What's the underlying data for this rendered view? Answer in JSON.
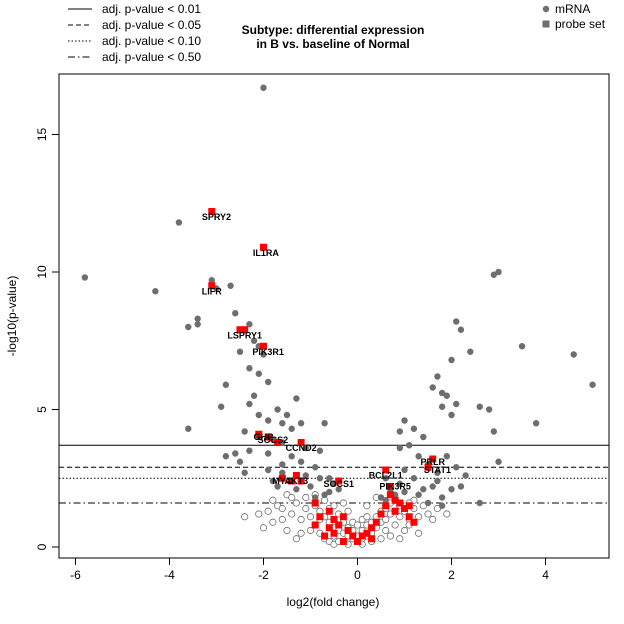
{
  "chart_data": {
    "type": "scatter",
    "title_line1": "Subtype: differential expression",
    "title_line2": "in B vs. baseline of Normal",
    "xlabel": "log2(fold change)",
    "ylabel": "-log10(p-value)",
    "xlim": [
      -6.35,
      5.35
    ],
    "ylim": [
      -0.4,
      17.2
    ],
    "xticks": [
      -6,
      -4,
      -2,
      0,
      2,
      4
    ],
    "yticks": [
      0,
      5,
      10,
      15
    ],
    "thresholds": [
      {
        "label": "adj. p-value < 0.01",
        "y": 3.7,
        "dash": ""
      },
      {
        "label": "adj. p-value < 0.05",
        "y": 2.9,
        "dash": "5,3"
      },
      {
        "label": "adj. p-value < 0.10",
        "y": 2.5,
        "dash": "1.5,2"
      },
      {
        "label": "adj. p-value < 0.50",
        "y": 1.6,
        "dash": "7,3,1.5,3"
      }
    ],
    "legend_right": [
      {
        "label": "mRNA",
        "shape": "circle"
      },
      {
        "label": "probe set",
        "shape": "square"
      }
    ],
    "colors": {
      "significant": "#6e6e6e",
      "probe_set": "#ff0000",
      "outline": "#6e6e6e"
    },
    "significant_mrna": [
      [
        -2.0,
        16.7
      ],
      [
        -5.8,
        9.8
      ],
      [
        -4.3,
        9.3
      ],
      [
        -3.8,
        11.8
      ],
      [
        -3.1,
        12.2
      ],
      [
        -2.0,
        10.9
      ],
      [
        -3.1,
        9.7
      ],
      [
        -3.0,
        9.4
      ],
      [
        -2.7,
        9.5
      ],
      [
        -3.4,
        8.1
      ],
      [
        -3.6,
        8.0
      ],
      [
        -3.4,
        8.3
      ],
      [
        -2.6,
        8.5
      ],
      [
        -2.3,
        8.1
      ],
      [
        -2.4,
        7.9
      ],
      [
        -2.2,
        7.5
      ],
      [
        -2.5,
        7.1
      ],
      [
        -2.1,
        7.3
      ],
      [
        -2.0,
        7.0
      ],
      [
        -2.3,
        6.5
      ],
      [
        -2.8,
        5.9
      ],
      [
        -2.1,
        6.3
      ],
      [
        -1.9,
        6.0
      ],
      [
        -2.9,
        5.1
      ],
      [
        -3.6,
        4.3
      ],
      [
        -2.3,
        5.2
      ],
      [
        -2.2,
        5.5
      ],
      [
        -2.1,
        4.8
      ],
      [
        -1.7,
        5.0
      ],
      [
        -1.9,
        4.6
      ],
      [
        -1.5,
        4.8
      ],
      [
        -1.3,
        5.4
      ],
      [
        -1.4,
        4.3
      ],
      [
        -1.6,
        4.5
      ],
      [
        -1.2,
        4.5
      ],
      [
        -0.7,
        4.5
      ],
      [
        -2.4,
        4.2
      ],
      [
        -2.1,
        4.0
      ],
      [
        -1.8,
        3.9
      ],
      [
        -2.3,
        3.5
      ],
      [
        -1.9,
        3.4
      ],
      [
        -1.6,
        3.8
      ],
      [
        -1.1,
        3.6
      ],
      [
        -0.8,
        3.5
      ],
      [
        -2.5,
        3.1
      ],
      [
        -1.9,
        2.8
      ],
      [
        -1.6,
        3.0
      ],
      [
        -1.4,
        3.3
      ],
      [
        -1.2,
        3.1
      ],
      [
        -0.9,
        2.9
      ],
      [
        -0.8,
        2.5
      ],
      [
        -1.0,
        2.2
      ],
      [
        -1.3,
        2.1
      ],
      [
        -1.6,
        2.7
      ],
      [
        -2.4,
        2.7
      ],
      [
        -1.8,
        2.4
      ],
      [
        -0.6,
        2.5
      ],
      [
        -0.5,
        2.3
      ],
      [
        -0.4,
        2.1
      ],
      [
        -0.7,
        1.9
      ],
      [
        -0.9,
        1.8
      ],
      [
        -1.1,
        2.6
      ],
      [
        -0.6,
        2.0
      ],
      [
        -2.6,
        3.4
      ],
      [
        -1.7,
        2.2
      ],
      [
        -2.8,
        3.3
      ],
      [
        4.6,
        7.0
      ],
      [
        5.0,
        5.9
      ],
      [
        3.8,
        4.5
      ],
      [
        3.5,
        7.3
      ],
      [
        3.0,
        10.0
      ],
      [
        2.9,
        9.9
      ],
      [
        2.1,
        8.2
      ],
      [
        2.2,
        7.9
      ],
      [
        2.4,
        7.1
      ],
      [
        2.0,
        6.8
      ],
      [
        1.7,
        6.2
      ],
      [
        1.6,
        5.8
      ],
      [
        1.9,
        5.5
      ],
      [
        1.8,
        5.1
      ],
      [
        2.0,
        4.8
      ],
      [
        2.6,
        5.1
      ],
      [
        2.8,
        5.0
      ],
      [
        2.9,
        4.2
      ],
      [
        1.2,
        4.3
      ],
      [
        1.0,
        4.6
      ],
      [
        0.9,
        4.2
      ],
      [
        1.4,
        4.0
      ],
      [
        1.1,
        3.7
      ],
      [
        1.3,
        3.3
      ],
      [
        0.9,
        3.6
      ],
      [
        1.5,
        3.0
      ],
      [
        1.9,
        3.3
      ],
      [
        2.1,
        2.9
      ],
      [
        2.3,
        2.6
      ],
      [
        1.7,
        2.7
      ],
      [
        1.6,
        2.2
      ],
      [
        2.0,
        2.1
      ],
      [
        2.2,
        2.2
      ],
      [
        1.2,
        2.5
      ],
      [
        0.9,
        2.3
      ],
      [
        0.7,
        2.1
      ],
      [
        0.6,
        2.5
      ],
      [
        0.8,
        1.9
      ],
      [
        1.0,
        2.0
      ],
      [
        1.3,
        1.9
      ],
      [
        1.5,
        1.6
      ],
      [
        1.8,
        1.8
      ],
      [
        1.8,
        1.5
      ],
      [
        2.6,
        1.6
      ],
      [
        3.0,
        3.1
      ],
      [
        1.0,
        2.8
      ],
      [
        1.7,
        2.4
      ],
      [
        1.4,
        2.1
      ],
      [
        0.5,
        1.8
      ],
      [
        2.1,
        5.2
      ],
      [
        0.6,
        1.7
      ],
      [
        1.8,
        5.6
      ]
    ],
    "other_mrna": [
      [
        -1.5,
        1.9
      ],
      [
        -1.3,
        1.6
      ],
      [
        -1.1,
        1.4
      ],
      [
        -1.4,
        1.2
      ],
      [
        -1.2,
        1.0
      ],
      [
        -0.9,
        1.5
      ],
      [
        -1.0,
        1.1
      ],
      [
        -0.8,
        1.3
      ],
      [
        -0.9,
        0.8
      ],
      [
        -0.7,
        1.1
      ],
      [
        -0.6,
        0.9
      ],
      [
        -0.5,
        0.7
      ],
      [
        -0.6,
        1.4
      ],
      [
        -0.4,
        1.2
      ],
      [
        -0.3,
        0.9
      ],
      [
        -0.4,
        0.6
      ],
      [
        -0.5,
        0.4
      ],
      [
        -0.3,
        0.5
      ],
      [
        -0.2,
        0.7
      ],
      [
        -0.2,
        0.4
      ],
      [
        -0.1,
        0.3
      ],
      [
        -0.1,
        0.6
      ],
      [
        0.0,
        0.2
      ],
      [
        0.0,
        0.4
      ],
      [
        0.1,
        0.3
      ],
      [
        0.1,
        0.6
      ],
      [
        0.2,
        0.4
      ],
      [
        0.2,
        0.8
      ],
      [
        0.3,
        0.5
      ],
      [
        0.3,
        0.9
      ],
      [
        0.4,
        0.7
      ],
      [
        0.4,
        1.1
      ],
      [
        0.5,
        0.9
      ],
      [
        0.5,
        1.3
      ],
      [
        0.6,
        1.0
      ],
      [
        0.6,
        1.4
      ],
      [
        0.7,
        1.2
      ],
      [
        0.7,
        1.6
      ],
      [
        0.8,
        1.3
      ],
      [
        0.9,
        1.1
      ],
      [
        0.9,
        1.5
      ],
      [
        1.0,
        1.3
      ],
      [
        1.1,
        1.0
      ],
      [
        1.2,
        1.4
      ],
      [
        1.3,
        1.1
      ],
      [
        1.1,
        0.8
      ],
      [
        1.2,
        1.7
      ],
      [
        1.4,
        1.5
      ],
      [
        -1.7,
        1.5
      ],
      [
        -1.9,
        1.3
      ],
      [
        -2.1,
        1.2
      ],
      [
        -1.6,
        1.0
      ],
      [
        -1.8,
        1.7
      ],
      [
        -2.4,
        1.1
      ],
      [
        -0.8,
        0.5
      ],
      [
        -0.7,
        0.3
      ],
      [
        -0.6,
        0.2
      ],
      [
        -0.5,
        0.1
      ],
      [
        0.3,
        0.2
      ],
      [
        0.5,
        0.3
      ],
      [
        0.6,
        0.6
      ],
      [
        0.8,
        0.8
      ],
      [
        1.0,
        0.6
      ],
      [
        -1.0,
        0.6
      ],
      [
        -1.2,
        0.5
      ],
      [
        -0.3,
        1.6
      ],
      [
        -0.2,
        1.3
      ],
      [
        0.2,
        1.5
      ],
      [
        0.4,
        1.8
      ],
      [
        -0.9,
        1.9
      ],
      [
        1.5,
        1.2
      ],
      [
        1.6,
        1.0
      ],
      [
        -1.3,
        0.3
      ],
      [
        -1.5,
        0.6
      ],
      [
        -0.4,
        0.2
      ],
      [
        0.7,
        0.4
      ],
      [
        0.9,
        0.3
      ],
      [
        1.3,
        0.5
      ],
      [
        -0.1,
        0.9
      ],
      [
        0.1,
        1.0
      ],
      [
        -1.1,
        1.8
      ],
      [
        -1.4,
        1.8
      ],
      [
        1.7,
        1.4
      ],
      [
        1.9,
        1.2
      ],
      [
        -1.8,
        0.9
      ],
      [
        -2.0,
        0.7
      ],
      [
        -0.7,
        1.7
      ],
      [
        0.0,
        0.8
      ],
      [
        0.2,
        1.1
      ],
      [
        -0.8,
        1.0
      ],
      [
        -0.2,
        0.1
      ],
      [
        0.1,
        0.1
      ],
      [
        1.1,
        1.6
      ],
      [
        -1.6,
        1.4
      ],
      [
        -0.5,
        1.5
      ],
      [
        0.8,
        1.7
      ]
    ],
    "probe_sets": [
      [
        -3.1,
        12.2
      ],
      [
        -2.0,
        10.9
      ],
      [
        -3.1,
        9.5
      ],
      [
        -2.5,
        7.9
      ],
      [
        -2.4,
        7.9
      ],
      [
        -2.0,
        7.3
      ],
      [
        -2.1,
        4.1
      ],
      [
        -1.9,
        4.0
      ],
      [
        -1.7,
        3.8
      ],
      [
        -1.2,
        3.8
      ],
      [
        -1.3,
        2.6
      ],
      [
        -1.6,
        2.5
      ],
      [
        -1.4,
        2.4
      ],
      [
        -1.2,
        2.4
      ],
      [
        -0.4,
        2.4
      ],
      [
        0.6,
        2.8
      ],
      [
        0.7,
        2.2
      ],
      [
        1.6,
        3.2
      ],
      [
        1.5,
        2.9
      ],
      [
        -0.9,
        1.6
      ],
      [
        -0.8,
        1.1
      ],
      [
        -0.6,
        1.3
      ],
      [
        -0.5,
        1.0
      ],
      [
        -0.4,
        0.8
      ],
      [
        -0.3,
        1.1
      ],
      [
        -0.2,
        0.6
      ],
      [
        -0.1,
        0.4
      ],
      [
        0.0,
        0.2
      ],
      [
        0.2,
        0.5
      ],
      [
        0.3,
        0.7
      ],
      [
        0.4,
        0.9
      ],
      [
        0.5,
        1.2
      ],
      [
        0.6,
        1.5
      ],
      [
        0.7,
        1.9
      ],
      [
        0.8,
        1.3
      ],
      [
        0.9,
        1.6
      ],
      [
        1.0,
        1.4
      ],
      [
        1.1,
        1.1
      ],
      [
        1.2,
        0.9
      ],
      [
        -0.5,
        0.5
      ],
      [
        -0.6,
        0.7
      ],
      [
        0.3,
        0.3
      ],
      [
        -0.9,
        0.8
      ],
      [
        -0.3,
        0.2
      ],
      [
        1.1,
        1.5
      ],
      [
        0.8,
        1.7
      ],
      [
        -0.7,
        0.4
      ],
      [
        0.1,
        0.4
      ]
    ],
    "labels": [
      {
        "text": "SPRY2",
        "x": -3.0,
        "y": 12.0
      },
      {
        "text": "IL1RA",
        "x": -1.95,
        "y": 10.7
      },
      {
        "text": "LIFR",
        "x": -3.1,
        "y": 9.3
      },
      {
        "text": "LSPRY1",
        "x": -2.4,
        "y": 7.7
      },
      {
        "text": "PIK3R1",
        "x": -1.9,
        "y": 7.1
      },
      {
        "text": "GHR",
        "x": -2.0,
        "y": 4.0
      },
      {
        "text": "SOCS2",
        "x": -1.8,
        "y": 3.9
      },
      {
        "text": "CCND2",
        "x": -1.2,
        "y": 3.6
      },
      {
        "text": "MYC",
        "x": -1.6,
        "y": 2.4
      },
      {
        "text": "AKT3",
        "x": -1.3,
        "y": 2.4
      },
      {
        "text": "SOCS1",
        "x": -0.4,
        "y": 2.3
      },
      {
        "text": "BCL2L1",
        "x": 0.6,
        "y": 2.6
      },
      {
        "text": "PRLR",
        "x": 1.6,
        "y": 3.1
      },
      {
        "text": "STAT1",
        "x": 1.7,
        "y": 2.8
      },
      {
        "text": "PIK3R5",
        "x": 0.8,
        "y": 2.2
      }
    ]
  }
}
